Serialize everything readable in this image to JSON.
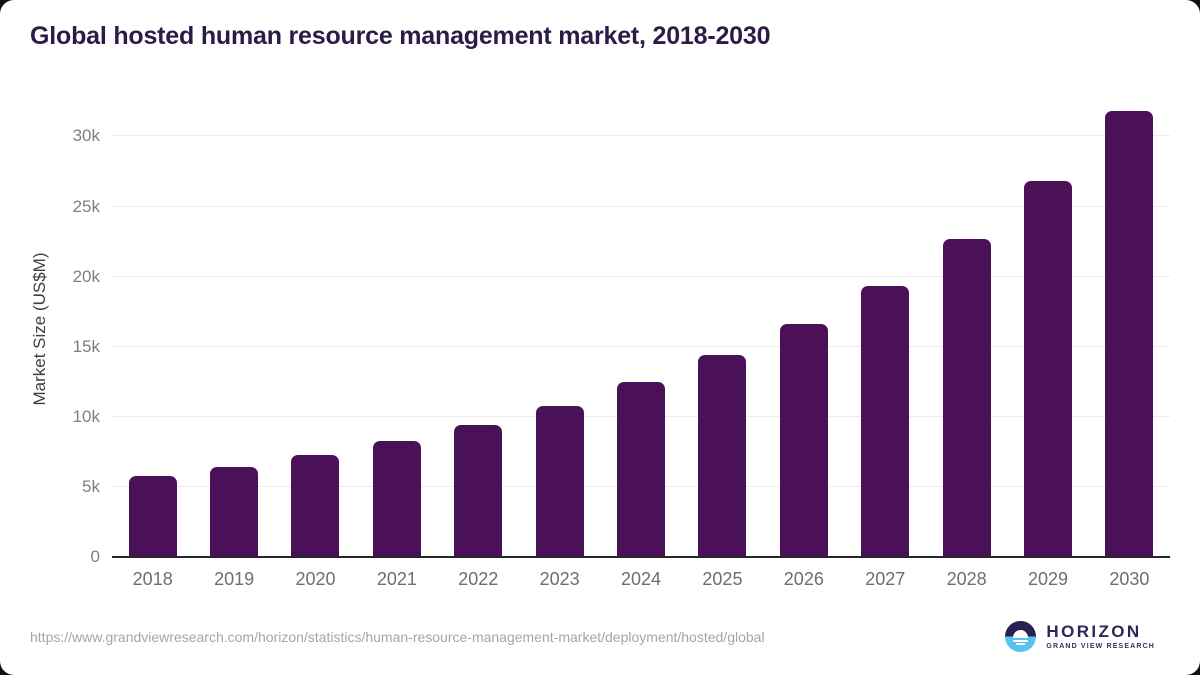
{
  "chart_data": {
    "type": "bar",
    "title": "Global hosted human resource management market, 2018-2030",
    "xlabel": "",
    "ylabel": "Market Size (US$M)",
    "categories": [
      "2018",
      "2019",
      "2020",
      "2021",
      "2022",
      "2023",
      "2024",
      "2025",
      "2026",
      "2027",
      "2028",
      "2029",
      "2030"
    ],
    "values": [
      5800,
      6450,
      7300,
      8300,
      9450,
      10800,
      12500,
      14400,
      16600,
      19300,
      22700,
      26800,
      31850
    ],
    "ylim": [
      0,
      32600
    ],
    "yticks": [
      {
        "value": 0,
        "label": "0"
      },
      {
        "value": 5000,
        "label": "5k"
      },
      {
        "value": 10000,
        "label": "10k"
      },
      {
        "value": 15000,
        "label": "15k"
      },
      {
        "value": 20000,
        "label": "20k"
      },
      {
        "value": 25000,
        "label": "25k"
      },
      {
        "value": 30000,
        "label": "30k"
      }
    ],
    "grid": "horizontal",
    "legend_position": "none",
    "bar_color": "#4a1158"
  },
  "colors": {
    "title": "#2e1a47",
    "gridline": "#ececec",
    "axis_line": "#26262a",
    "y_tick_label": "#7f7f7f",
    "x_tick_label": "#6e6e6e",
    "logo_navy": "#2b2150",
    "logo_blue": "#5ac2ef"
  },
  "footer": {
    "source_url": "https://www.grandviewresearch.com/horizon/statistics/human-resource-management-market/deployment/hosted/global",
    "logo": {
      "brand": "HORIZON",
      "subtitle": "GRAND VIEW RESEARCH",
      "icon": "horizon-sunset-circle-icon"
    }
  }
}
